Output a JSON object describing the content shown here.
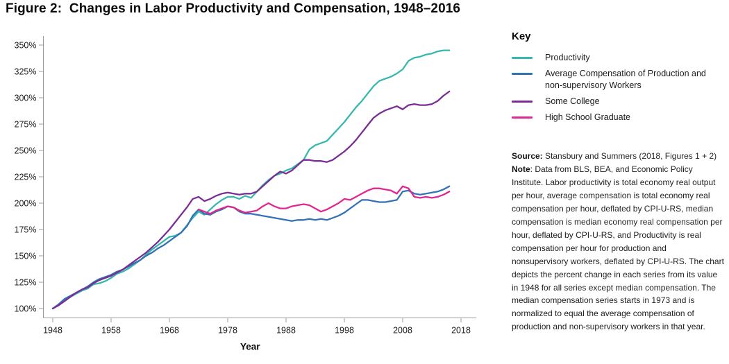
{
  "title": "Figure 2:  Changes in Labor Productivity and Compensation, 1948–2016",
  "legend": {
    "title": "Key",
    "items": [
      {
        "label": "Productivity",
        "color": "#35b8ad"
      },
      {
        "label": "Average Compensation of Production and non-supervisory Workers",
        "color": "#3571b4"
      },
      {
        "label": "Some College",
        "color": "#7b2d96"
      },
      {
        "label": "High School Graduate",
        "color": "#e02790"
      }
    ]
  },
  "notes": {
    "source_label": "Source:",
    "source_text": " Stansbury and Summers (2018, Figures 1 + 2)",
    "note_label": "Note",
    "note_text": ": Data from BLS, BEA, and Economic Policy Institute. Labor productivity is total economy real output per hour, average compensation is total economy real compensation per hour, deflated by CPI-U-RS, median compensation is median economy real compensation per hour, deflated by CPI-U-RS, and Productivity is real compensation per hour for production and nonsupervisory workers, deflated by CPI-U-RS. The chart depicts the percent change in each series from its value in 1948 for all series except median compensation. The median compensation series starts in 1973 and is normalized to equal the average compensation of production and non-supervisory workers in that year."
  },
  "chart_data": {
    "type": "line",
    "title": "Figure 2: Changes in Labor Productivity and Compensation, 1948-2016",
    "xlabel": "Year",
    "ylabel": "",
    "x_range": [
      1948,
      2018
    ],
    "y_range": [
      100,
      350
    ],
    "grid": false,
    "legend_position": "right",
    "x_ticks": [
      {
        "v": 1948,
        "label": "1948"
      },
      {
        "v": 1958,
        "label": "1958"
      },
      {
        "v": 1968,
        "label": "1968"
      },
      {
        "v": 1978,
        "label": "1978"
      },
      {
        "v": 1988,
        "label": "1988"
      },
      {
        "v": 1998,
        "label": "1998"
      },
      {
        "v": 2008,
        "label": "2008"
      },
      {
        "v": 2018,
        "label": "2018"
      }
    ],
    "y_ticks": [
      {
        "v": 100,
        "label": "100%"
      },
      {
        "v": 125,
        "label": "125%"
      },
      {
        "v": 150,
        "label": "150%"
      },
      {
        "v": 175,
        "label": "175%"
      },
      {
        "v": 200,
        "label": "200%"
      },
      {
        "v": 225,
        "label": "225%"
      },
      {
        "v": 250,
        "label": "250%"
      },
      {
        "v": 275,
        "label": "275%"
      },
      {
        "v": 300,
        "label": "300%"
      },
      {
        "v": 325,
        "label": "325%"
      },
      {
        "v": 350,
        "label": "350%"
      }
    ],
    "series": [
      {
        "name": "Productivity",
        "color": "#35b8ad",
        "start_year": 1948,
        "values": [
          100,
          103,
          108,
          111,
          114,
          117,
          119,
          123,
          124,
          126,
          129,
          133,
          135,
          138,
          142,
          146,
          151,
          156,
          160,
          164,
          168,
          169,
          172,
          179,
          186,
          192,
          189,
          194,
          199,
          203,
          206,
          206,
          204,
          207,
          205,
          211,
          217,
          222,
          226,
          228,
          231,
          233,
          237,
          241,
          251,
          255,
          257,
          259,
          265,
          271,
          277,
          284,
          291,
          297,
          304,
          311,
          316,
          318,
          320,
          323,
          327,
          335,
          338,
          339,
          341,
          342,
          344,
          345,
          345
        ]
      },
      {
        "name": "Average Compensation of Production and non-supervisory Workers",
        "color": "#3571b4",
        "start_year": 1948,
        "values": [
          100,
          104,
          109,
          112,
          115,
          118,
          121,
          125,
          128,
          130,
          132,
          135,
          137,
          140,
          143,
          146,
          150,
          153,
          157,
          160,
          164,
          168,
          172,
          178,
          188,
          194,
          190,
          189,
          192,
          194,
          197,
          196,
          192,
          190,
          190,
          189,
          188,
          187,
          186,
          185,
          184,
          183,
          184,
          184,
          185,
          184,
          185,
          184,
          186,
          188,
          191,
          195,
          199,
          203,
          203,
          202,
          201,
          201,
          202,
          203,
          211,
          212,
          209,
          208,
          209,
          210,
          211,
          213,
          216
        ]
      },
      {
        "name": "Some College",
        "color": "#7b2d96",
        "start_year": 1948,
        "values": [
          100,
          103,
          107,
          111,
          115,
          118,
          120,
          124,
          127,
          129,
          131,
          134,
          137,
          141,
          145,
          149,
          153,
          158,
          163,
          169,
          175,
          182,
          189,
          196,
          204,
          206,
          202,
          204,
          207,
          209,
          210,
          209,
          208,
          209,
          209,
          211,
          216,
          221,
          226,
          230,
          228,
          231,
          236,
          241,
          241,
          240,
          240,
          239,
          241,
          245,
          249,
          254,
          260,
          267,
          274,
          281,
          285,
          288,
          290,
          292,
          289,
          293,
          294,
          293,
          293,
          294,
          297,
          302,
          306
        ]
      },
      {
        "name": "High School Graduate",
        "color": "#e02790",
        "start_year": 1973,
        "values": [
          194,
          192,
          190,
          193,
          195,
          197,
          196,
          193,
          191,
          192,
          193,
          197,
          200,
          197,
          195,
          195,
          197,
          198,
          199,
          198,
          195,
          192,
          194,
          197,
          200,
          204,
          203,
          206,
          209,
          212,
          214,
          214,
          213,
          212,
          209,
          216,
          214,
          206,
          205,
          206,
          205,
          206,
          208,
          211
        ]
      }
    ]
  }
}
